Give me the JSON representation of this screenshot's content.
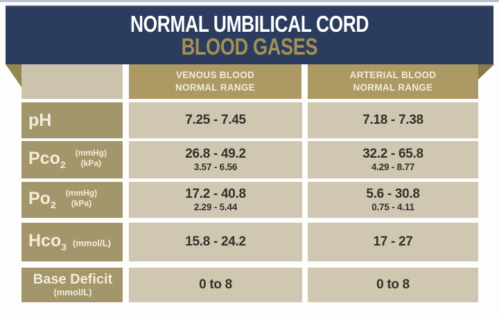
{
  "title": {
    "line1": "NORMAL UMBILICAL CORD",
    "line2": "BLOOD GASES"
  },
  "header": {
    "venous_line1": "VENOUS BLOOD",
    "venous_line2": "NORMAL RANGE",
    "arterial_line1": "ARTERIAL BLOOD",
    "arterial_line2": "NORMAL RANGE"
  },
  "rows": [
    {
      "label": "pH",
      "venous": "7.25 - 7.45",
      "arterial": "7.18 - 7.38"
    },
    {
      "label": "Pco",
      "label_sub": "2",
      "unit_top": "(mmHg)",
      "unit_bottom": "(kPa)",
      "venous": "26.8 - 49.2",
      "venous_kpa": "3.57 - 6.56",
      "arterial": "32.2 - 65.8",
      "arterial_kpa": "4.29 - 8.77"
    },
    {
      "label": "Po",
      "label_sub": "2",
      "unit_top": "(mmHg)",
      "unit_bottom": "(kPa)",
      "venous": "17.2 - 40.8",
      "venous_kpa": "2.29 - 5.44",
      "arterial": "5.6 - 30.8",
      "arterial_kpa": "0.75 - 4.11"
    },
    {
      "label": "Hco",
      "label_sub": "3",
      "unit_inline": "(mmol/L)",
      "venous": "15.8 - 24.2",
      "arterial": "17 - 27"
    },
    {
      "label": "Base Deficit",
      "unit_below": "(mmol/L)",
      "venous": "0 to 8",
      "arterial": "0 to 8"
    }
  ],
  "colors": {
    "navy": "#2b3c5e",
    "title_gold": "#a29156",
    "header_gold": "#ad9963",
    "corner_beige": "#cbc3ab",
    "label_tan": "#a3966a",
    "value_tan": "#cfc7b1",
    "cream_text": "#f2edda",
    "dark_text": "#32312a"
  },
  "chart_data": {
    "type": "table",
    "title": "NORMAL UMBILICAL CORD BLOOD GASES",
    "columns": [
      "Parameter",
      "VENOUS BLOOD NORMAL RANGE",
      "ARTERIAL BLOOD NORMAL RANGE"
    ],
    "rows": [
      {
        "parameter": "pH",
        "venous": "7.25 - 7.45",
        "arterial": "7.18 - 7.38"
      },
      {
        "parameter": "Pco2 (mmHg)",
        "venous": "26.8 - 49.2",
        "arterial": "32.2 - 65.8"
      },
      {
        "parameter": "Pco2 (kPa)",
        "venous": "3.57 - 6.56",
        "arterial": "4.29 - 8.77"
      },
      {
        "parameter": "Po2 (mmHg)",
        "venous": "17.2 - 40.8",
        "arterial": "5.6 - 30.8"
      },
      {
        "parameter": "Po2 (kPa)",
        "venous": "2.29 - 5.44",
        "arterial": "0.75 - 4.11"
      },
      {
        "parameter": "Hco3 (mmol/L)",
        "venous": "15.8 - 24.2",
        "arterial": "17 - 27"
      },
      {
        "parameter": "Base Deficit (mmol/L)",
        "venous": "0 to 8",
        "arterial": "0 to 8"
      }
    ]
  }
}
